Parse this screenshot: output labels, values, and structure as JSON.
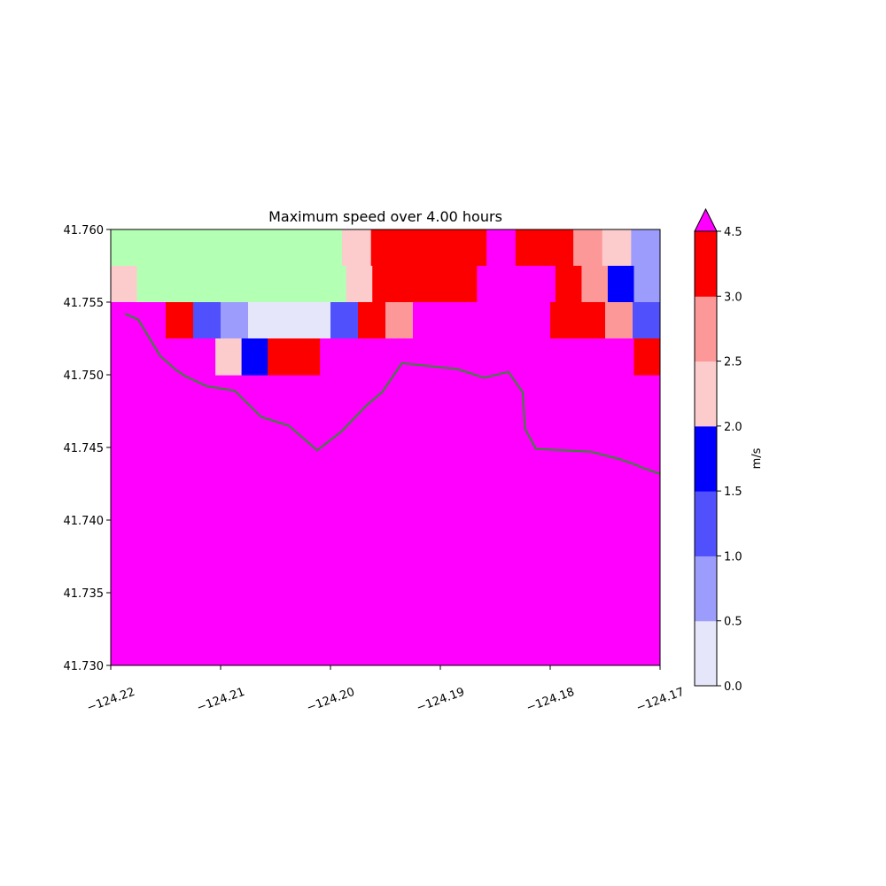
{
  "chart_data": {
    "type": "heatmap",
    "title": "Maximum speed over 4.00 hours",
    "xlabel": "",
    "ylabel": "",
    "xlim": [
      -124.22,
      -124.17
    ],
    "ylim": [
      41.73,
      41.76
    ],
    "x_ticks": [
      "−124.22",
      "−124.21",
      "−124.20",
      "−124.19",
      "−124.18",
      "−124.17"
    ],
    "x_tick_values": [
      -124.22,
      -124.21,
      -124.2,
      -124.19,
      -124.18,
      -124.17
    ],
    "y_ticks": [
      "41.730",
      "41.735",
      "41.740",
      "41.745",
      "41.750",
      "41.755",
      "41.760"
    ],
    "y_tick_values": [
      41.73,
      41.735,
      41.74,
      41.745,
      41.75,
      41.755,
      41.76
    ],
    "grid": false,
    "cell_size": [
      0.0025,
      0.0025
    ],
    "cell_rows": [
      {
        "y_top": 41.76,
        "cells": [
          "land",
          "land",
          "land",
          "land",
          "land",
          "land",
          "land",
          "land",
          "v2.0-2.5",
          "v3.0-4.5",
          "v3.0-4.5",
          "v3.0-4.5",
          "v3.0-4.5",
          "over",
          "v3.0-4.5",
          "v3.0-4.5",
          "v2.5-3.0",
          "v2.0-2.5",
          "v0.5-1.0"
        ]
      },
      {
        "y_top": 41.7575,
        "cells": [
          "v2.0-2.5",
          "land",
          "land",
          "land",
          "land",
          "land",
          "land",
          "land",
          "land",
          "v2.0-2.5",
          "v3.0-4.5",
          "v3.0-4.5",
          "v3.0-4.5",
          "v3.0-4.5",
          "over",
          "over",
          "over",
          "v3.0-4.5",
          "v2.5-3.0",
          "v1.5-2.0",
          "v0.5-1.0"
        ]
      },
      {
        "y_top": 41.755,
        "cells": [
          "over",
          "over",
          "v3.0-4.5",
          "v1.0-1.5",
          "v0.5-1.0",
          "v0.0-0.5",
          "v0.0-0.5",
          "v0.0-0.5",
          "v1.0-1.5",
          "v3.0-4.5",
          "v2.5-3.0",
          "over",
          "over",
          "over",
          "over",
          "over",
          "v3.0-4.5",
          "v3.0-4.5",
          "v2.5-3.0",
          "v1.0-1.5"
        ]
      },
      {
        "y_top": 41.7525,
        "cells": [
          "over",
          "over",
          "over",
          "over",
          "v2.0-2.5",
          "v1.5-2.0",
          "v3.0-4.5",
          "v3.0-4.5",
          "over",
          "over",
          "over",
          "over",
          "over",
          "over",
          "over",
          "over",
          "over",
          "over",
          "over",
          "over",
          "v3.0-4.5"
        ]
      }
    ],
    "fill_below": "over",
    "coastline": [
      [
        -124.2187,
        41.7542
      ],
      [
        -124.2175,
        41.7538
      ],
      [
        -124.2155,
        41.7513
      ],
      [
        -124.214,
        41.7503
      ],
      [
        -124.2132,
        41.7499
      ],
      [
        -124.2112,
        41.7492
      ],
      [
        -124.2087,
        41.7489
      ],
      [
        -124.2063,
        41.7471
      ],
      [
        -124.2038,
        41.7465
      ],
      [
        -124.2012,
        41.7448
      ],
      [
        -124.199,
        41.7461
      ],
      [
        -124.1967,
        41.7479
      ],
      [
        -124.1953,
        41.7488
      ],
      [
        -124.1935,
        41.7508
      ],
      [
        -124.1885,
        41.7504
      ],
      [
        -124.186,
        41.7498
      ],
      [
        -124.1838,
        41.7502
      ],
      [
        -124.1825,
        41.7488
      ],
      [
        -124.1823,
        41.7463
      ],
      [
        -124.1813,
        41.7449
      ],
      [
        -124.1787,
        41.7448
      ],
      [
        -124.1763,
        41.7447
      ],
      [
        -124.1737,
        41.7442
      ],
      [
        -124.1722,
        41.7438
      ],
      [
        -124.1716,
        41.7436
      ],
      [
        -124.1697,
        41.7431
      ]
    ],
    "coastline_color": "#2e8b2e",
    "colorbar": {
      "label": "m/s",
      "ticks": [
        "0.0",
        "0.5",
        "1.0",
        "1.5",
        "2.0",
        "2.5",
        "3.0",
        "4.5"
      ],
      "tick_values": [
        0.0,
        0.5,
        1.0,
        1.5,
        2.0,
        2.5,
        3.0,
        4.5
      ],
      "bins": [
        {
          "key": "v0.0-0.5",
          "from": 0.0,
          "to": 0.5,
          "color": "#e6e6fa"
        },
        {
          "key": "v0.5-1.0",
          "from": 0.5,
          "to": 1.0,
          "color": "#9c9cfc"
        },
        {
          "key": "v1.0-1.5",
          "from": 1.0,
          "to": 1.5,
          "color": "#5050fc"
        },
        {
          "key": "v1.5-2.0",
          "from": 1.5,
          "to": 2.0,
          "color": "#0000fc"
        },
        {
          "key": "v2.0-2.5",
          "from": 2.0,
          "to": 2.5,
          "color": "#fccccc"
        },
        {
          "key": "v2.5-3.0",
          "from": 2.5,
          "to": 3.0,
          "color": "#fc9898"
        },
        {
          "key": "v3.0-4.5",
          "from": 3.0,
          "to": 4.5,
          "color": "#fc0000"
        }
      ],
      "extend_max_color": "#ff00ff",
      "land_color": "#b3ffb3"
    }
  }
}
